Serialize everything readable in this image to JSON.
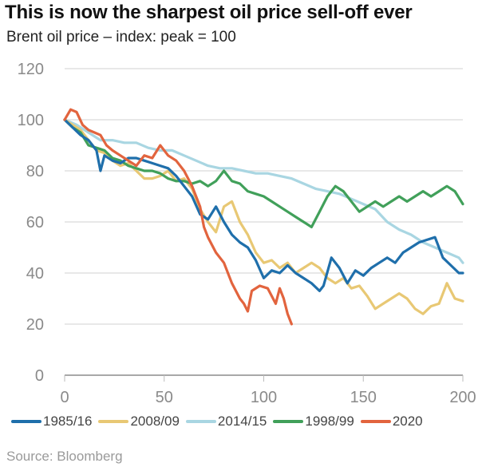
{
  "title": "This is now the sharpest oil price sell-off ever",
  "subtitle": "Brent oil price – index: peak = 100",
  "source": "Source: Bloomberg",
  "chart_data": {
    "type": "line",
    "title": "This is now the sharpest oil price sell-off ever",
    "subtitle": "Brent oil price – index: peak = 100",
    "xlabel": "",
    "ylabel": "",
    "xlim": [
      0,
      200
    ],
    "ylim": [
      0,
      120
    ],
    "xticks": [
      0,
      50,
      100,
      150,
      200
    ],
    "yticks": [
      0,
      20,
      40,
      60,
      80,
      100,
      120
    ],
    "grid": "horizontal",
    "legend": "bottom",
    "series": [
      {
        "name": "1985/16",
        "color": "#1f6fab",
        "x": [
          0,
          4,
          8,
          12,
          16,
          18,
          20,
          24,
          28,
          32,
          36,
          40,
          44,
          48,
          52,
          56,
          60,
          64,
          68,
          72,
          76,
          80,
          84,
          88,
          92,
          96,
          100,
          104,
          108,
          112,
          116,
          120,
          124,
          128,
          130,
          134,
          138,
          142,
          146,
          150,
          154,
          158,
          162,
          166,
          170,
          174,
          178,
          182,
          186,
          190,
          194,
          198,
          200
        ],
        "y": [
          100,
          97,
          94,
          92,
          88,
          80,
          86,
          84,
          83,
          85,
          85,
          84,
          83,
          82,
          81,
          78,
          74,
          70,
          63,
          61,
          66,
          60,
          55,
          52,
          50,
          45,
          38,
          41,
          40,
          43,
          40,
          38,
          36,
          33,
          35,
          46,
          42,
          36,
          41,
          39,
          42,
          44,
          46,
          44,
          48,
          50,
          52,
          53,
          54,
          46,
          43,
          40,
          40
        ]
      },
      {
        "name": "2008/09",
        "color": "#e8c874",
        "x": [
          0,
          4,
          8,
          12,
          16,
          20,
          24,
          28,
          32,
          36,
          40,
          44,
          48,
          52,
          56,
          60,
          64,
          68,
          72,
          76,
          80,
          84,
          88,
          92,
          96,
          100,
          104,
          108,
          112,
          116,
          120,
          124,
          128,
          132,
          136,
          140,
          144,
          148,
          152,
          156,
          160,
          164,
          168,
          172,
          176,
          180,
          184,
          188,
          192,
          196,
          200
        ],
        "y": [
          100,
          98,
          96,
          92,
          88,
          87,
          84,
          82,
          83,
          80,
          77,
          77,
          78,
          80,
          76,
          77,
          73,
          65,
          60,
          56,
          66,
          68,
          60,
          55,
          48,
          44,
          45,
          42,
          44,
          40,
          42,
          44,
          42,
          38,
          36,
          38,
          34,
          35,
          31,
          26,
          28,
          30,
          32,
          30,
          26,
          24,
          27,
          28,
          36,
          30,
          29
        ]
      },
      {
        "name": "2014/15",
        "color": "#a9d6e2",
        "x": [
          0,
          6,
          12,
          18,
          24,
          30,
          36,
          42,
          48,
          54,
          60,
          66,
          72,
          78,
          84,
          90,
          96,
          102,
          108,
          114,
          120,
          126,
          132,
          138,
          144,
          150,
          156,
          162,
          168,
          174,
          180,
          186,
          192,
          198,
          200
        ],
        "y": [
          100,
          98,
          95,
          92,
          92,
          91,
          91,
          89,
          88,
          88,
          86,
          84,
          82,
          81,
          81,
          80,
          79,
          79,
          78,
          77,
          75,
          73,
          72,
          71,
          69,
          67,
          65,
          60,
          57,
          55,
          52,
          50,
          48,
          46,
          44
        ]
      },
      {
        "name": "1998/99",
        "color": "#41a05a",
        "x": [
          0,
          4,
          8,
          12,
          16,
          20,
          24,
          28,
          32,
          36,
          40,
          44,
          48,
          52,
          56,
          60,
          64,
          68,
          72,
          76,
          80,
          84,
          88,
          92,
          96,
          100,
          104,
          108,
          112,
          116,
          120,
          124,
          128,
          132,
          136,
          140,
          144,
          148,
          152,
          156,
          160,
          164,
          168,
          172,
          176,
          180,
          184,
          188,
          192,
          196,
          200
        ],
        "y": [
          100,
          97,
          95,
          90,
          89,
          88,
          85,
          84,
          82,
          81,
          80,
          80,
          79,
          77,
          76,
          76,
          75,
          76,
          74,
          76,
          80,
          76,
          75,
          72,
          71,
          70,
          68,
          66,
          64,
          62,
          60,
          58,
          64,
          70,
          74,
          72,
          68,
          64,
          66,
          68,
          66,
          68,
          70,
          68,
          70,
          72,
          70,
          72,
          74,
          72,
          67
        ]
      },
      {
        "name": "2020",
        "color": "#e2643e",
        "x": [
          0,
          3,
          6,
          9,
          12,
          15,
          18,
          21,
          24,
          28,
          32,
          36,
          40,
          44,
          48,
          52,
          56,
          60,
          64,
          68,
          70,
          72,
          76,
          80,
          84,
          88,
          90,
          92,
          94,
          98,
          102,
          106,
          108,
          110,
          112,
          114
        ],
        "y": [
          100,
          104,
          103,
          98,
          96,
          95,
          94,
          90,
          88,
          86,
          84,
          82,
          86,
          85,
          90,
          86,
          84,
          80,
          74,
          66,
          58,
          54,
          48,
          44,
          36,
          30,
          28,
          25,
          33,
          35,
          34,
          28,
          34,
          30,
          24,
          20
        ]
      }
    ]
  },
  "legend": [
    {
      "label": "1985/16",
      "color": "#1f6fab"
    },
    {
      "label": "2008/09",
      "color": "#e8c874"
    },
    {
      "label": "2014/15",
      "color": "#a9d6e2"
    },
    {
      "label": "1998/99",
      "color": "#41a05a"
    },
    {
      "label": "2020",
      "color": "#e2643e"
    }
  ]
}
